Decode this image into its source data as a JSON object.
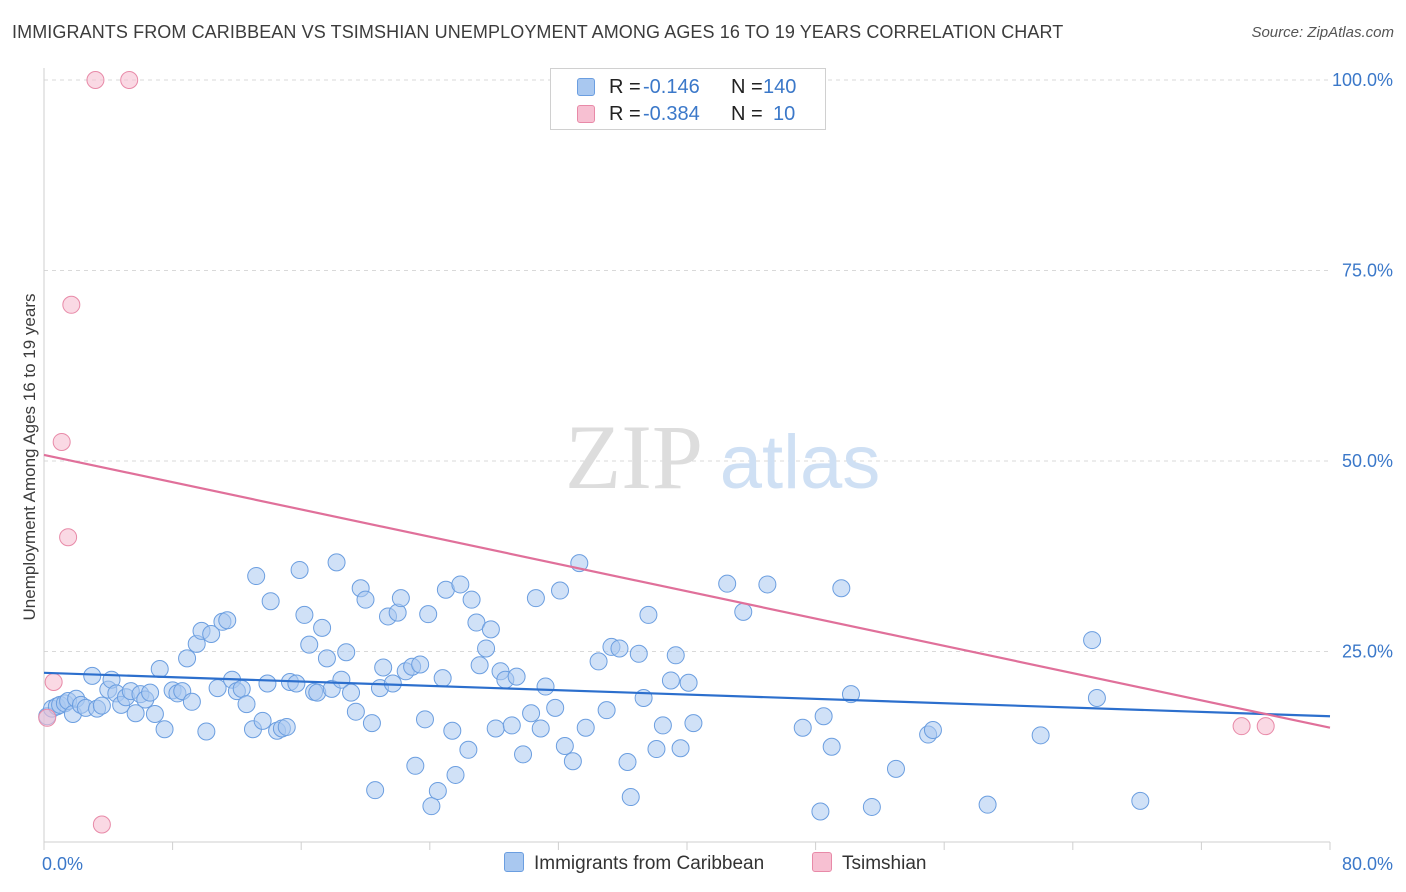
{
  "title": "IMMIGRANTS FROM CARIBBEAN VS TSIMSHIAN UNEMPLOYMENT AMONG AGES 16 TO 19 YEARS CORRELATION CHART",
  "source": "Source: ZipAtlas.com",
  "watermark": {
    "zip": "ZIP",
    "atlas": "atlas"
  },
  "legend_top": [
    {
      "r_label": "R =",
      "r_value": "-0.146",
      "n_label": "N =",
      "n_value": "140",
      "color": "#a9c8f0",
      "border": "#6b9ee0"
    },
    {
      "r_label": "R =",
      "r_value": "-0.384",
      "n_label": "N =",
      "n_value": "10",
      "color": "#f7c0d2",
      "border": "#e88aa8"
    }
  ],
  "chart_data": {
    "type": "scatter",
    "xlabel": "",
    "ylabel": "Unemployment Among Ages 16 to 19 years",
    "xlim": [
      0,
      80
    ],
    "ylim": [
      0,
      100
    ],
    "x_tick_labels": {
      "min": "0.0%",
      "max": "80.0%"
    },
    "y_tick_labels": [
      {
        "value": 100,
        "label": "100.0%"
      },
      {
        "value": 75,
        "label": "75.0%"
      },
      {
        "value": 50,
        "label": "50.0%"
      },
      {
        "value": 25,
        "label": "25.0%"
      }
    ],
    "grid": "horizontal dashed",
    "series": [
      {
        "name": "Immigrants from Caribbean",
        "color": "#a9c8f0",
        "stroke": "#6b9ee0",
        "trend_color": "#2c6fcd",
        "trend": [
          [
            0,
            22.2
          ],
          [
            80,
            16.5
          ]
        ],
        "points": [
          [
            0.2,
            16.5
          ],
          [
            0.5,
            17.5
          ],
          [
            0.8,
            17.8
          ],
          [
            1.0,
            18.0
          ],
          [
            1.3,
            18.2
          ],
          [
            1.5,
            18.5
          ],
          [
            1.8,
            16.8
          ],
          [
            2.0,
            18.8
          ],
          [
            2.3,
            18.0
          ],
          [
            2.6,
            17.6
          ],
          [
            3.0,
            21.8
          ],
          [
            3.3,
            17.5
          ],
          [
            3.6,
            17.9
          ],
          [
            4.0,
            20.0
          ],
          [
            4.2,
            21.3
          ],
          [
            4.5,
            19.5
          ],
          [
            4.8,
            18.0
          ],
          [
            5.1,
            19.0
          ],
          [
            5.4,
            19.8
          ],
          [
            5.7,
            16.9
          ],
          [
            6.0,
            19.4
          ],
          [
            6.3,
            18.7
          ],
          [
            6.6,
            19.6
          ],
          [
            6.9,
            16.8
          ],
          [
            7.2,
            22.7
          ],
          [
            7.5,
            14.8
          ],
          [
            8.0,
            19.9
          ],
          [
            8.3,
            19.5
          ],
          [
            8.6,
            19.8
          ],
          [
            8.9,
            24.1
          ],
          [
            9.2,
            18.4
          ],
          [
            9.5,
            26.0
          ],
          [
            9.8,
            27.7
          ],
          [
            10.1,
            14.5
          ],
          [
            10.4,
            27.3
          ],
          [
            10.8,
            20.2
          ],
          [
            11.1,
            28.9
          ],
          [
            11.4,
            29.1
          ],
          [
            11.7,
            21.3
          ],
          [
            12.0,
            19.8
          ],
          [
            12.3,
            20.1
          ],
          [
            12.6,
            18.1
          ],
          [
            13.0,
            14.8
          ],
          [
            13.2,
            34.9
          ],
          [
            13.6,
            15.9
          ],
          [
            13.9,
            20.8
          ],
          [
            14.1,
            31.6
          ],
          [
            14.5,
            14.6
          ],
          [
            14.8,
            14.9
          ],
          [
            15.1,
            15.1
          ],
          [
            15.3,
            21.0
          ],
          [
            15.7,
            20.8
          ],
          [
            15.9,
            35.7
          ],
          [
            16.2,
            29.8
          ],
          [
            16.5,
            25.9
          ],
          [
            16.8,
            19.7
          ],
          [
            17.0,
            19.6
          ],
          [
            17.3,
            28.1
          ],
          [
            17.6,
            24.1
          ],
          [
            17.9,
            20.1
          ],
          [
            18.2,
            36.7
          ],
          [
            18.5,
            21.3
          ],
          [
            18.8,
            24.9
          ],
          [
            19.1,
            19.6
          ],
          [
            19.4,
            17.1
          ],
          [
            19.7,
            33.3
          ],
          [
            20.0,
            31.8
          ],
          [
            20.4,
            15.6
          ],
          [
            20.6,
            6.8
          ],
          [
            20.9,
            20.2
          ],
          [
            21.1,
            22.9
          ],
          [
            21.4,
            29.6
          ],
          [
            21.7,
            20.8
          ],
          [
            22.0,
            30.1
          ],
          [
            22.2,
            32.0
          ],
          [
            22.5,
            22.4
          ],
          [
            22.9,
            23.0
          ],
          [
            23.1,
            10.0
          ],
          [
            23.4,
            23.3
          ],
          [
            23.7,
            16.1
          ],
          [
            23.9,
            29.9
          ],
          [
            24.1,
            4.7
          ],
          [
            24.5,
            6.7
          ],
          [
            24.8,
            21.5
          ],
          [
            25.0,
            33.1
          ],
          [
            25.4,
            14.6
          ],
          [
            25.6,
            8.8
          ],
          [
            25.9,
            33.8
          ],
          [
            26.4,
            12.1
          ],
          [
            26.6,
            31.8
          ],
          [
            26.9,
            28.8
          ],
          [
            27.1,
            23.2
          ],
          [
            27.5,
            25.4
          ],
          [
            27.8,
            27.9
          ],
          [
            28.1,
            14.9
          ],
          [
            28.4,
            22.4
          ],
          [
            28.7,
            21.3
          ],
          [
            29.1,
            15.3
          ],
          [
            29.4,
            21.7
          ],
          [
            29.8,
            11.5
          ],
          [
            30.3,
            16.9
          ],
          [
            30.6,
            32.0
          ],
          [
            30.9,
            14.9
          ],
          [
            31.2,
            20.4
          ],
          [
            31.8,
            17.6
          ],
          [
            32.1,
            33.0
          ],
          [
            32.4,
            12.6
          ],
          [
            32.9,
            10.6
          ],
          [
            33.3,
            36.6
          ],
          [
            33.7,
            15.0
          ],
          [
            34.5,
            23.7
          ],
          [
            35.0,
            17.3
          ],
          [
            35.3,
            25.6
          ],
          [
            35.8,
            25.4
          ],
          [
            36.3,
            10.5
          ],
          [
            36.5,
            5.9
          ],
          [
            37.0,
            24.7
          ],
          [
            37.3,
            18.9
          ],
          [
            37.6,
            29.8
          ],
          [
            38.1,
            12.2
          ],
          [
            38.5,
            15.3
          ],
          [
            39.0,
            21.2
          ],
          [
            39.3,
            24.5
          ],
          [
            39.6,
            12.3
          ],
          [
            40.1,
            20.9
          ],
          [
            40.4,
            15.6
          ],
          [
            42.5,
            33.9
          ],
          [
            43.5,
            30.2
          ],
          [
            45.0,
            33.8
          ],
          [
            47.2,
            15.0
          ],
          [
            48.3,
            4.0
          ],
          [
            48.5,
            16.5
          ],
          [
            49.0,
            12.5
          ],
          [
            49.6,
            33.3
          ],
          [
            50.2,
            19.4
          ],
          [
            51.5,
            4.6
          ],
          [
            53.0,
            9.6
          ],
          [
            55.0,
            14.1
          ],
          [
            55.3,
            14.7
          ],
          [
            58.7,
            4.9
          ],
          [
            62.0,
            14.0
          ],
          [
            65.2,
            26.5
          ],
          [
            65.5,
            18.9
          ],
          [
            68.2,
            5.4
          ]
        ]
      },
      {
        "name": "Tsimshian",
        "color": "#f7c0d2",
        "stroke": "#e88aa8",
        "trend_color": "#e0709a",
        "trend": [
          [
            0,
            50.8
          ],
          [
            80,
            15.0
          ]
        ],
        "points": [
          [
            0.2,
            16.3
          ],
          [
            0.6,
            21.0
          ],
          [
            1.1,
            52.5
          ],
          [
            1.5,
            40.0
          ],
          [
            1.7,
            70.5
          ],
          [
            3.2,
            100.0
          ],
          [
            3.6,
            2.3
          ],
          [
            5.3,
            100.0
          ],
          [
            74.5,
            15.2
          ],
          [
            76.0,
            15.2
          ]
        ]
      }
    ]
  },
  "legend_bottom": [
    {
      "label": "Immigrants from Caribbean",
      "color": "#a9c8f0",
      "border": "#6b9ee0"
    },
    {
      "label": "Tsimshian",
      "color": "#f7c0d2",
      "border": "#e88aa8"
    }
  ]
}
